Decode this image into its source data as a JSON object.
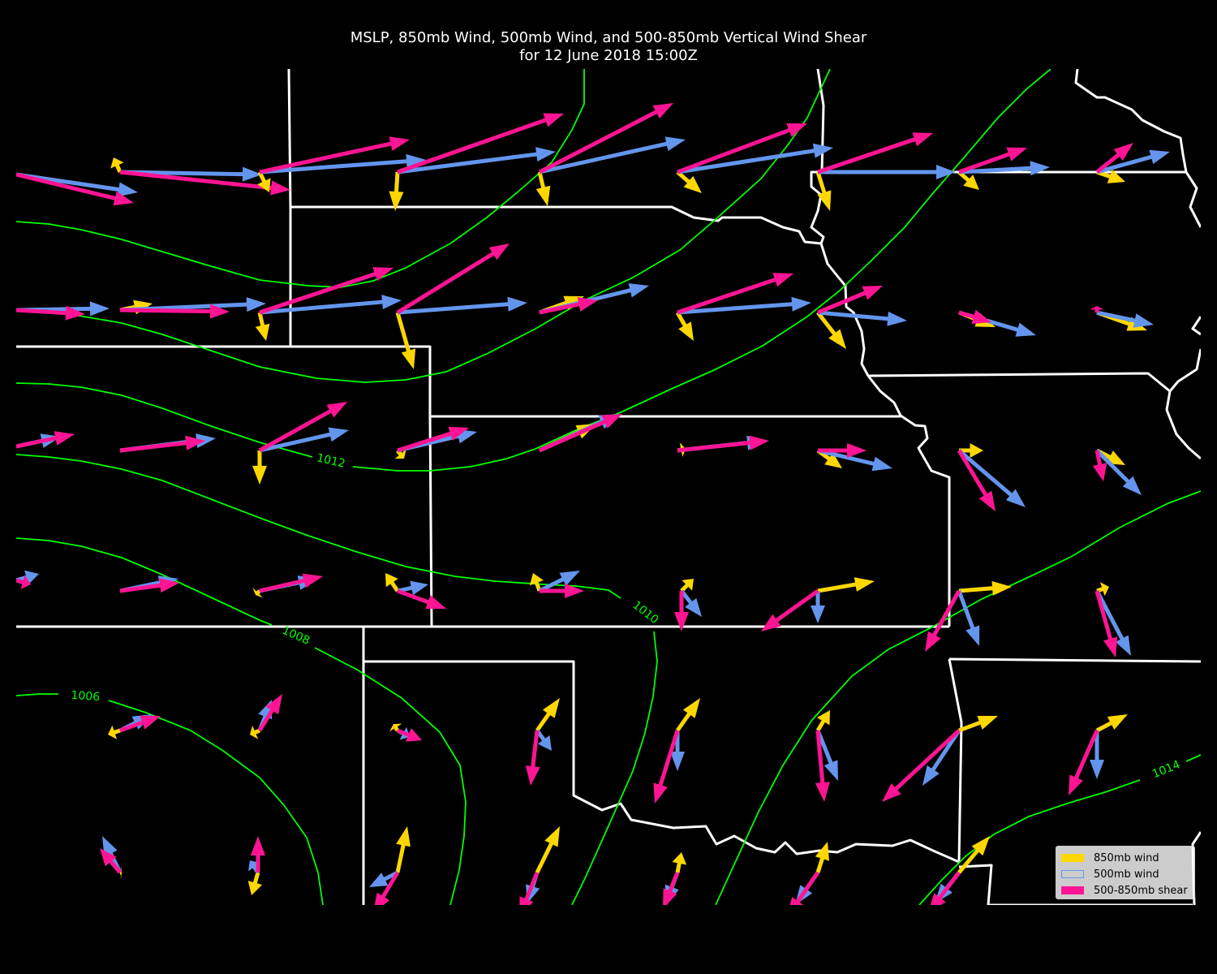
{
  "title": {
    "line1": "MSLP, 850mb Wind, 500mb Wind, and 500-850mb Vertical Wind Shear",
    "line2": "for 12 June 2018 15:00Z"
  },
  "colors": {
    "background": "#000000",
    "boundaries": "#ffffff",
    "isobars": "#00ff00",
    "wind850": "#ffd700",
    "wind500": "#6495ed",
    "shear": "#ff1493"
  },
  "isobar_labels": [
    "1006",
    "1008",
    "1010",
    "1012",
    "1014"
  ],
  "legend": {
    "items": [
      {
        "label": "850mb wind",
        "color": "#ffd700",
        "filled": true
      },
      {
        "label": "500mb wind",
        "color": "#6495ed",
        "filled": false
      },
      {
        "label": "500-850mb shear",
        "color": "#ff1493",
        "filled": true
      }
    ]
  }
}
